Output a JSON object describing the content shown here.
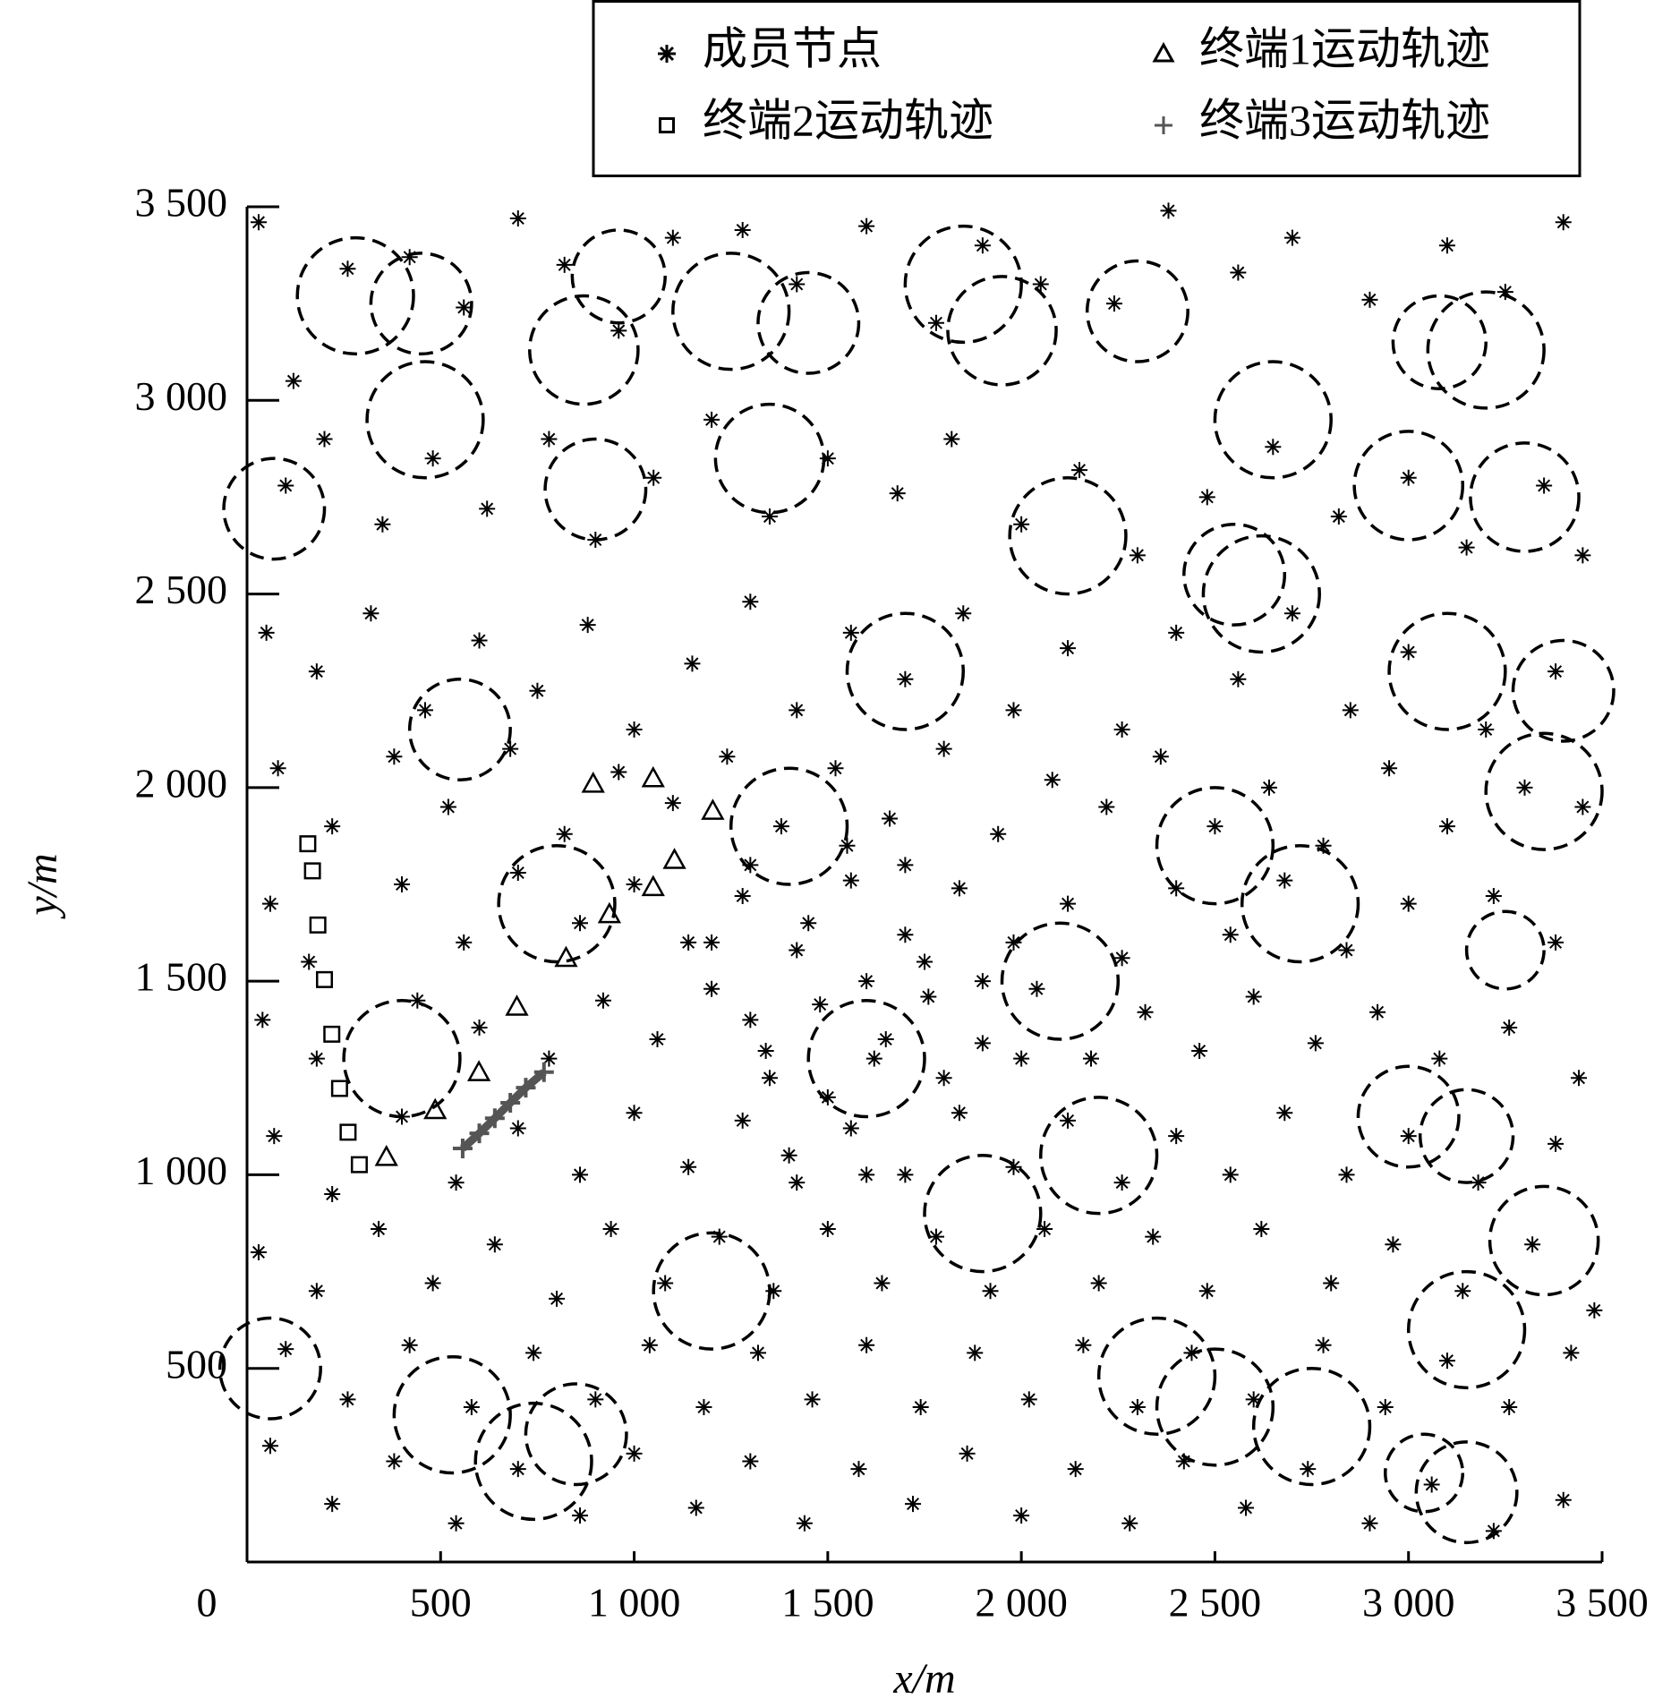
{
  "chart_data": {
    "type": "scatter",
    "x_label": "x/m",
    "y_label": "y/m",
    "xlim": [
      0,
      3500
    ],
    "ylim": [
      0,
      3500
    ],
    "xticks": [
      0,
      500,
      {
        "value": 1000,
        "label": "1 000"
      },
      {
        "value": 1500,
        "label": "1 500"
      },
      {
        "value": 2000,
        "label": "2 000"
      },
      {
        "value": 2500,
        "label": "2 500"
      },
      {
        "value": 3000,
        "label": "3 000"
      },
      {
        "value": 3500,
        "label": "3 500"
      }
    ],
    "yticks": [
      500,
      {
        "value": 1000,
        "label": "1 000"
      },
      {
        "value": 1500,
        "label": "1 500"
      },
      {
        "value": 2000,
        "label": "2 000"
      },
      {
        "value": 2500,
        "label": "2 500"
      },
      {
        "value": 3000,
        "label": "3 000"
      },
      {
        "value": 3500,
        "label": "3 500"
      }
    ],
    "legend_loc": "upper right",
    "series": [
      {
        "name": "成员节点",
        "marker": "asterisk",
        "color": "#000000",
        "x": [
          30,
          120,
          260,
          420,
          560,
          700,
          820,
          960,
          1100,
          1280,
          1420,
          1600,
          1780,
          1900,
          2050,
          2240,
          2380,
          2560,
          2700,
          2900,
          3100,
          3250,
          3400,
          100,
          200,
          350,
          480,
          620,
          780,
          900,
          1050,
          1200,
          1350,
          1500,
          1680,
          1820,
          2000,
          2150,
          2300,
          2480,
          2650,
          2820,
          3000,
          3150,
          3350,
          3450,
          50,
          180,
          320,
          460,
          600,
          750,
          880,
          1000,
          1150,
          1300,
          1420,
          1560,
          1700,
          1850,
          1980,
          2120,
          2260,
          2400,
          2560,
          2700,
          2850,
          3000,
          3200,
          3380,
          80,
          220,
          380,
          520,
          680,
          820,
          960,
          1100,
          1240,
          1380,
          1520,
          1660,
          1800,
          1940,
          2080,
          2220,
          2360,
          2500,
          2640,
          2780,
          2950,
          3100,
          3300,
          3450,
          60,
          160,
          400,
          560,
          700,
          860,
          1000,
          1140,
          1280,
          1420,
          1560,
          1700,
          1840,
          1980,
          2120,
          2260,
          2400,
          2540,
          2680,
          2840,
          3000,
          3220,
          3380,
          40,
          180,
          440,
          600,
          780,
          920,
          1060,
          1200,
          1340,
          1480,
          1620,
          1760,
          1900,
          2040,
          2180,
          2320,
          2460,
          2600,
          2760,
          2920,
          3080,
          3260,
          3440,
          70,
          220,
          400,
          540,
          700,
          860,
          1000,
          1140,
          1280,
          1420,
          1560,
          1700,
          1840,
          1980,
          2120,
          2260,
          2400,
          2540,
          2680,
          2840,
          3000,
          3180,
          3380,
          30,
          180,
          340,
          480,
          640,
          800,
          940,
          1080,
          1220,
          1360,
          1500,
          1640,
          1780,
          1920,
          2060,
          2200,
          2340,
          2480,
          2620,
          2800,
          2960,
          3140,
          3320,
          3480,
          100,
          260,
          420,
          580,
          740,
          900,
          1040,
          1180,
          1320,
          1460,
          1600,
          1740,
          1880,
          2020,
          2160,
          2300,
          2440,
          2600,
          2780,
          2940,
          3100,
          3260,
          3420,
          60,
          220,
          380,
          540,
          700,
          860,
          1000,
          1160,
          1300,
          1440,
          1580,
          1720,
          1860,
          2000,
          2140,
          2280,
          2420,
          2580,
          2740,
          2900,
          3060,
          3220,
          3400,
          1300,
          1450,
          1600,
          1750,
          1350,
          1500,
          1650,
          1800,
          1550,
          1700,
          1400,
          1600,
          1900,
          2000,
          1200,
          1300
        ],
        "y": [
          3460,
          3050,
          3340,
          3370,
          3240,
          3470,
          3350,
          3180,
          3420,
          3440,
          3300,
          3450,
          3200,
          3400,
          3300,
          3250,
          3490,
          3330,
          3420,
          3260,
          3400,
          3280,
          3460,
          2780,
          2900,
          2680,
          2850,
          2720,
          2900,
          2640,
          2800,
          2950,
          2700,
          2850,
          2760,
          2900,
          2680,
          2820,
          2600,
          2750,
          2880,
          2700,
          2800,
          2620,
          2780,
          2600,
          2400,
          2300,
          2450,
          2200,
          2380,
          2250,
          2420,
          2150,
          2320,
          2480,
          2200,
          2400,
          2280,
          2450,
          2200,
          2360,
          2150,
          2400,
          2280,
          2450,
          2200,
          2350,
          2150,
          2300,
          2050,
          1900,
          2080,
          1950,
          2100,
          1880,
          2040,
          1960,
          2080,
          1900,
          2050,
          1920,
          2100,
          1880,
          2020,
          1950,
          2080,
          1900,
          2000,
          1850,
          2050,
          1900,
          2000,
          1950,
          1700,
          1550,
          1750,
          1600,
          1780,
          1650,
          1750,
          1600,
          1720,
          1580,
          1760,
          1620,
          1740,
          1600,
          1700,
          1560,
          1740,
          1620,
          1760,
          1580,
          1700,
          1720,
          1600,
          1400,
          1300,
          1450,
          1380,
          1300,
          1450,
          1350,
          1480,
          1320,
          1440,
          1300,
          1460,
          1340,
          1480,
          1300,
          1420,
          1320,
          1460,
          1340,
          1420,
          1300,
          1380,
          1250,
          1100,
          950,
          1150,
          980,
          1120,
          1000,
          1160,
          1020,
          1140,
          980,
          1120,
          1000,
          1160,
          1020,
          1140,
          980,
          1100,
          1000,
          1160,
          1000,
          1100,
          980,
          1080,
          800,
          700,
          860,
          720,
          820,
          680,
          860,
          720,
          840,
          700,
          860,
          720,
          840,
          700,
          860,
          720,
          840,
          700,
          860,
          720,
          820,
          700,
          820,
          650,
          550,
          420,
          560,
          400,
          540,
          420,
          560,
          400,
          540,
          420,
          560,
          400,
          540,
          420,
          560,
          400,
          540,
          420,
          560,
          400,
          520,
          400,
          540,
          300,
          150,
          260,
          100,
          240,
          120,
          280,
          140,
          260,
          100,
          240,
          150,
          280,
          120,
          240,
          100,
          260,
          140,
          240,
          100,
          200,
          80,
          160,
          1800,
          1650,
          1500,
          1550,
          1250,
          1200,
          1350,
          1250,
          1850,
          1800,
          1050,
          1000,
          1500,
          1300,
          1600,
          1400
        ]
      },
      {
        "name": "终端1运动轨迹",
        "marker": "triangle",
        "color": "#000000",
        "x": [
          360,
          486,
          599,
          697,
          824,
          936,
          1049,
          1104,
          1203,
          1049,
          894
        ],
        "y": [
          1046,
          1167,
          1265,
          1434,
          1560,
          1673,
          1743,
          1813,
          1940,
          2024,
          2010
        ]
      },
      {
        "name": "终端2运动轨迹",
        "marker": "square",
        "color": "#000000",
        "x": [
          157,
          169,
          183,
          200,
          219,
          239,
          261,
          290
        ],
        "y": [
          1855,
          1785,
          1645,
          1504,
          1363,
          1223,
          1110,
          1026
        ]
      },
      {
        "name": "终端3运动轨迹",
        "marker": "plus",
        "color": "#555555",
        "x": [
          557,
          600,
          640,
          680,
          720,
          767
        ],
        "y": [
          1068,
          1107,
          1146,
          1186,
          1225,
          1265
        ]
      }
    ],
    "clusters": {
      "x": [
        280,
        450,
        870,
        960,
        1250,
        1450,
        1350,
        1850,
        1950,
        2300,
        2650,
        3200,
        3080,
        3000,
        3300,
        460,
        70,
        900,
        2120,
        2620,
        2550,
        3100,
        3400,
        3350,
        2500,
        2720,
        3250,
        3000,
        3150,
        3350,
        3150,
        2350,
        2500,
        2750,
        3040,
        3150,
        740,
        850,
        530,
        60,
        550,
        400,
        1900,
        1200,
        1600,
        1400,
        2100,
        800,
        2200,
        1700
      ],
      "y": [
        3270,
        3250,
        3130,
        3320,
        3230,
        3200,
        2850,
        3300,
        3180,
        3230,
        2950,
        3130,
        3150,
        2780,
        2750,
        2950,
        2720,
        2770,
        2650,
        2500,
        2550,
        2300,
        2250,
        1990,
        1850,
        1700,
        1580,
        1150,
        1100,
        830,
        600,
        480,
        400,
        350,
        230,
        180,
        260,
        330,
        380,
        500,
        2150,
        1300,
        900,
        700,
        1300,
        1900,
        1500,
        1700,
        1050,
        2300
      ],
      "r": [
        150,
        130,
        140,
        120,
        150,
        130,
        140,
        150,
        140,
        130,
        150,
        150,
        120,
        140,
        140,
        150,
        130,
        130,
        150,
        150,
        130,
        150,
        130,
        150,
        150,
        150,
        100,
        130,
        120,
        140,
        150,
        150,
        150,
        150,
        100,
        130,
        150,
        130,
        150,
        130,
        130,
        150,
        150,
        150,
        150,
        150,
        150,
        150,
        150,
        150
      ]
    }
  }
}
